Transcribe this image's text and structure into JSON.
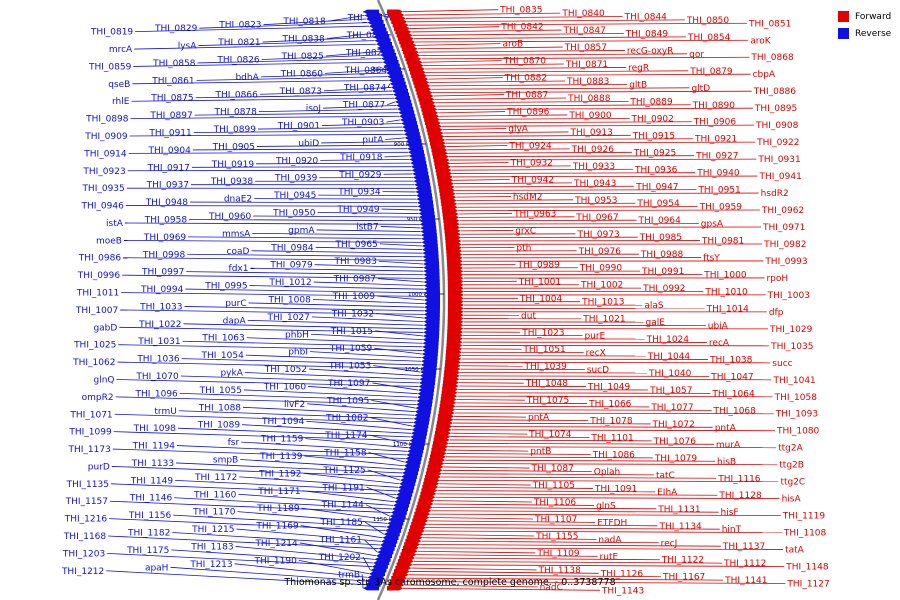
{
  "caption": "Thiomonas sp. str. 3As chromosome, complete genome. - 0..3738778",
  "legend": [
    {
      "label": "Forward",
      "color": "#e00000",
      "icon": "red-square"
    },
    {
      "label": "Reverse",
      "color": "#1010e0",
      "icon": "blue-square"
    }
  ],
  "colors": {
    "forward": "#e00000",
    "reverse": "#1010e0",
    "backbone": "#888888"
  },
  "kbp_ticks": [
    {
      "label": "850 kbp",
      "pos": 0.115
    },
    {
      "label": "900 kbp",
      "pos": 0.24
    },
    {
      "label": "950 kbp",
      "pos": 0.365
    },
    {
      "label": "1000 kbp",
      "pos": 0.49
    },
    {
      "label": "1050 kbp",
      "pos": 0.615
    },
    {
      "label": "1100 kbp",
      "pos": 0.74
    },
    {
      "label": "1150 kbp",
      "pos": 0.865
    }
  ],
  "reverse_labels": [
    "THI_0817",
    "THI_0818",
    "THI_0823",
    "THI_0829",
    "THI_0819",
    "THI_0824",
    "THI_0838",
    "THI_0821",
    "lysA",
    "mrcA",
    "THI_0822",
    "THI_0825",
    "THI_0826",
    "THI_0858",
    "THI_0859",
    "THI_0864",
    "THI_0860",
    "bdhA",
    "THI_0861",
    "qseB",
    "THI_0874",
    "THI_0873",
    "THI_0866",
    "THI_0875",
    "rhlE",
    "THI_0877",
    "isoJ",
    "THI_0878",
    "THI_0897",
    "THI_0898",
    "THI_0903",
    "THI_0901",
    "THI_0899",
    "THI_0911",
    "THI_0909",
    "putA",
    "ubiD",
    "THI_0905",
    "THI_0904",
    "THI_0914",
    "THI_0918",
    "THI_0920",
    "THI_0919",
    "THI_0917",
    "THI_0923",
    "THI_0929",
    "THI_0939",
    "THI_0938",
    "THI_0937",
    "THI_0935",
    "THI_0934",
    "THI_0945",
    "dnaE2",
    "THI_0948",
    "THI_0946",
    "THI_0949",
    "THI_0950",
    "THI_0960",
    "THI_0958",
    "istA",
    "istB7",
    "gpmA",
    "mmsA",
    "THI_0969",
    "moeB",
    "THI_0965",
    "THI_0984",
    "coaD",
    "THI_0998",
    "THI_0986",
    "THI_0983",
    "THI_0979",
    "fdx1",
    "THI_0997",
    "THI_0996",
    "THI_0987",
    "THI_1012",
    "THI_0995",
    "THI_0994",
    "THI_1011",
    "THI_1009",
    "THI_1008",
    "purC",
    "THI_1033",
    "THI_1007",
    "THI_1032",
    "THI_1027",
    "dapA",
    "THI_1022",
    "gabD",
    "THI_1015",
    "phbH",
    "THI_1063",
    "THI_1031",
    "THI_1025",
    "THI_1059",
    "phbI",
    "THI_1054",
    "THI_1036",
    "THI_1062",
    "THI_1053",
    "THI_1052",
    "pykA",
    "THI_1070",
    "glnQ",
    "THI_1097",
    "THI_1060",
    "THI_1055",
    "THI_1096",
    "ompR2",
    "THI_1095",
    "livF2",
    "THI_1088",
    "trmU",
    "THI_1071",
    "THI_1082",
    "THI_1094",
    "THI_1089",
    "THI_1098",
    "THI_1099",
    "THI_1174",
    "THI_1159",
    "fsr",
    "THI_1194",
    "THI_1173",
    "THI_1158",
    "THI_1139",
    "smpB",
    "THI_1133",
    "purD",
    "THI_1125",
    "THI_1192",
    "THI_1172",
    "THI_1149",
    "THI_1135",
    "THI_1191",
    "THI_1171",
    "THI_1160",
    "THI_1146",
    "THI_1157",
    "THI_1144",
    "THI_1189",
    "THI_1170",
    "THI_1156",
    "THI_1216",
    "THI_1185",
    "THI_1169",
    "THI_1215",
    "THI_1182",
    "THI_1168",
    "THI_1161",
    "THI_1214",
    "THI_1183",
    "THI_1175",
    "THI_1203",
    "THI_1202",
    "THI_1190",
    "THI_1213",
    "apaH",
    "THI_1212",
    "trmB"
  ],
  "forward_labels": [
    "THI_0835",
    "THI_0840",
    "THI_0844",
    "THI_0850",
    "THI_0851",
    "THI_0842",
    "THI_0847",
    "THI_0849",
    "THI_0854",
    "aroK",
    "aroB",
    "THI_0857",
    "recG-oxyR",
    "qor",
    "THI_0868",
    "THI_0870",
    "THI_0871",
    "regR",
    "THI_0879",
    "cbpA",
    "THI_0882",
    "THI_0883",
    "gltB",
    "gltD",
    "THI_0886",
    "THI_0887",
    "THI_0888",
    "THI_0889",
    "THI_0890",
    "THI_0895",
    "THI_0896",
    "THI_0900",
    "THI_0902",
    "THI_0906",
    "THI_0908",
    "glyA",
    "THI_0913",
    "THI_0915",
    "THI_0921",
    "THI_0922",
    "THI_0924",
    "THI_0926",
    "THI_0925",
    "THI_0927",
    "THI_0931",
    "THI_0932",
    "THI_0933",
    "THI_0936",
    "THI_0940",
    "THI_0941",
    "THI_0942",
    "THI_0943",
    "THI_0947",
    "THI_0951",
    "hsdR2",
    "hsdM2",
    "THI_0953",
    "THI_0954",
    "THI_0959",
    "THI_0962",
    "THI_0963",
    "THI_0967",
    "THI_0964",
    "gpsA",
    "THI_0971",
    "grxC",
    "THI_0973",
    "THI_0985",
    "THI_0981",
    "THI_0982",
    "pth",
    "THI_0976",
    "THI_0988",
    "ftsY",
    "THI_0993",
    "THI_0989",
    "THI_0990",
    "THI_0991",
    "THI_1000",
    "rpoH",
    "THI_1001",
    "THI_1002",
    "THI_0992",
    "THI_1010",
    "THI_1003",
    "THI_1004",
    "THI_1013",
    "alaS",
    "THI_1014",
    "dfp",
    "dut",
    "THI_1021",
    "galE",
    "ubiA",
    "THI_1029",
    "THI_1023",
    "purE",
    "THI_1024",
    "recA",
    "THI_1035",
    "THI_1051",
    "recX",
    "THI_1044",
    "THI_1038",
    "succ",
    "THI_1039",
    "sucD",
    "THI_1040",
    "THI_1047",
    "THI_1041",
    "THI_1048",
    "THI_1049",
    "THI_1057",
    "THI_1064",
    "THI_1058",
    "THI_1075",
    "THI_1066",
    "THI_1077",
    "THI_1068",
    "THI_1093",
    "pntA",
    "THI_1078",
    "THI_1072",
    "pntA",
    "THI_1080",
    "THI_1074",
    "THI_1101",
    "THI_1076",
    "murA",
    "ttg2A",
    "pntB",
    "THI_1086",
    "THI_1079",
    "hisB",
    "ttg2B",
    "THI_1087",
    "Oplah",
    "tatC",
    "THI_1116",
    "ttg2C",
    "THI_1105",
    "THI_1091",
    "EIhA",
    "THI_1128",
    "hisA",
    "THI_1106",
    "glnS",
    "THI_1131",
    "hisF",
    "THI_1119",
    "THI_1107",
    "ETFDH",
    "THI_1134",
    "hinT",
    "THI_1108",
    "THI_1155",
    "nadA",
    "recJ",
    "THI_1137",
    "tatA",
    "THI_1109",
    "rutE",
    "THI_1122",
    "THI_1112",
    "THI_1148",
    "THI_1138",
    "THI_1126",
    "THI_1167",
    "THI_1141",
    "THI_1127",
    "nadC",
    "THI_1143"
  ]
}
